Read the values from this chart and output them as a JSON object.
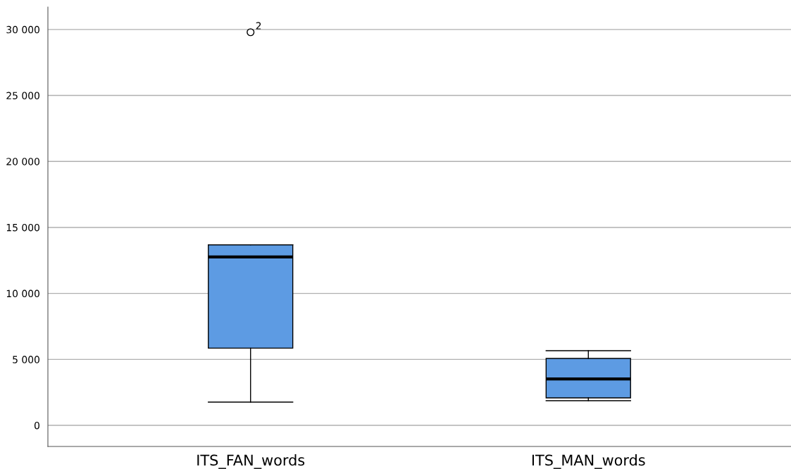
{
  "chart_data": {
    "type": "box",
    "categories": [
      "ITS_FAN_words",
      "ITS_MAN_words"
    ],
    "boxes": [
      {
        "low": 1760,
        "q1": 5850,
        "median": 12760,
        "q3": 13680,
        "high": 13680,
        "outliers": [
          29790
        ]
      },
      {
        "low": 1870,
        "q1": 2080,
        "median": 3520,
        "q3": 5070,
        "high": 5660
      }
    ],
    "color": "#5d9be3",
    "ylim": [
      -1600,
      31700
    ],
    "yticks": [
      {
        "value": 0,
        "label": "0"
      },
      {
        "value": 5000,
        "label": "5 000"
      },
      {
        "value": 10000,
        "label": "10 000"
      },
      {
        "value": 15000,
        "label": "15 000"
      },
      {
        "value": 20000,
        "label": "20 000"
      },
      {
        "value": 25000,
        "label": "25 000"
      },
      {
        "value": 30000,
        "label": "30 000"
      }
    ],
    "grid": "y",
    "annotations": [
      "2"
    ]
  }
}
